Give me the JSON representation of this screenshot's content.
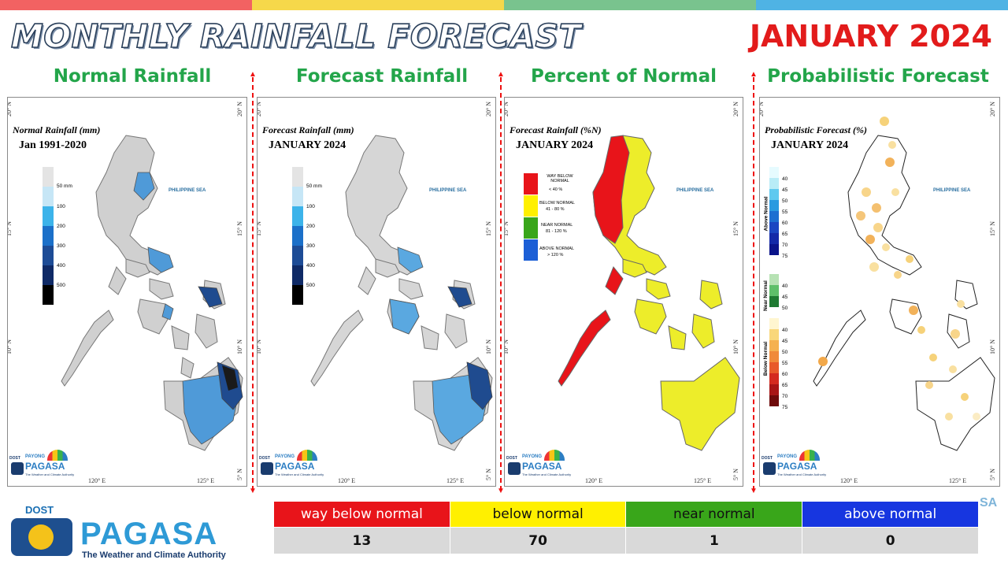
{
  "title": "MONTHLY RAINFALL FORECAST",
  "date": "JANUARY 2024",
  "colors": {
    "top_bar": [
      "#f26262",
      "#f6d84a",
      "#79c38e",
      "#4fb3e4"
    ],
    "way_below": "#e8141a",
    "below": "#fff000",
    "near": "#39a61a",
    "above": "#1736e0",
    "title_green": "#23a54a"
  },
  "panels": [
    {
      "heading": "Normal Rainfall",
      "map_title": "Normal Rainfall (mm)",
      "map_subtitle": "Jan 1991-2020",
      "sea_label": "PHILIPPINE SEA",
      "legend": [
        "50 mm",
        "100",
        "200",
        "300",
        "400",
        "500"
      ]
    },
    {
      "heading": "Forecast Rainfall",
      "map_title": "Forecast Rainfall (mm)",
      "map_subtitle": "JANUARY 2024",
      "sea_label": "PHILIPPINE SEA",
      "legend": [
        "50 mm",
        "100",
        "200",
        "300",
        "400",
        "500"
      ]
    },
    {
      "heading": "Percent of Normal",
      "map_title": "Forecast Rainfall (%N)",
      "map_subtitle": "JANUARY 2024",
      "sea_label": "PHILIPPINE SEA",
      "legend": [
        {
          "name": "WAY BELOW NORMAL",
          "range": "< 40 %"
        },
        {
          "name": "BELOW NORMAL",
          "range": "41 - 80 %"
        },
        {
          "name": "NEAR NORMAL",
          "range": "81 - 120 %"
        },
        {
          "name": "ABOVE NORMAL",
          "range": "> 120 %"
        }
      ]
    },
    {
      "heading": "Probabilistic Forecast",
      "map_title": "Probabilistic Forecast (%)",
      "map_subtitle": "JANUARY 2024",
      "sea_label": "PHILIPPINE SEA",
      "legend_groups": [
        {
          "name": "Above Normal",
          "values": [
            "40",
            "45",
            "50",
            "55",
            "60",
            "65",
            "70",
            "75"
          ]
        },
        {
          "name": "Near Normal",
          "values": [
            "40",
            "45",
            "50"
          ]
        },
        {
          "name": "Below Normal",
          "values": [
            "40",
            "45",
            "50",
            "55",
            "60",
            "65",
            "70",
            "75"
          ]
        }
      ]
    }
  ],
  "axes": {
    "lat_20": "20° N",
    "lat_15": "15° N",
    "lat_10": "10° N",
    "lat_5": "5° N",
    "lon_120": "120° E",
    "lon_125": "125° E"
  },
  "mini_logo": {
    "dost": "DOST",
    "payong": "PAYONG",
    "pagasa": "PAGASA",
    "tagline": "The Weather and Climate Authority"
  },
  "main_logo": {
    "dost": "DOST",
    "name": "PAGASA",
    "tagline": "The Weather and Climate Authority"
  },
  "summary": {
    "categories": [
      "way below normal",
      "below normal",
      "near normal",
      "above normal"
    ],
    "counts": [
      "13",
      "70",
      "1",
      "0"
    ]
  },
  "edge_text": "SA"
}
